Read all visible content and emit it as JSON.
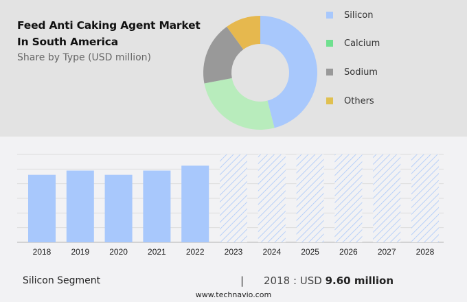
{
  "header": {
    "title_line1": "Feed Anti Caking Agent Market",
    "title_line2": "In South America",
    "subtitle": "Share by Type (USD million)"
  },
  "legend": [
    {
      "label": "Silicon",
      "color": "#a8c8fc"
    },
    {
      "label": "Calcium",
      "color": "#6fe08f"
    },
    {
      "label": "Sodium",
      "color": "#999999"
    },
    {
      "label": "Others",
      "color": "#e0c050"
    }
  ],
  "footer": {
    "segment": "Silicon Segment",
    "separator": "|",
    "value_prefix": "2018 : USD ",
    "value_bold": "9.60 million",
    "url": "www.technavio.com"
  },
  "chart_data": [
    {
      "type": "pie",
      "title": "Feed Anti Caking Agent Market In South America - Share by Type (USD million)",
      "donut": true,
      "categories": [
        "Silicon",
        "Calcium",
        "Sodium",
        "Others"
      ],
      "values": [
        46,
        26,
        18,
        10
      ],
      "colors": [
        "#a8c8fc",
        "#b8ecbc",
        "#999999",
        "#e6b84e"
      ],
      "legend_position": "right"
    },
    {
      "type": "bar",
      "title": "Silicon Segment",
      "categories": [
        "2018",
        "2019",
        "2020",
        "2021",
        "2022",
        "2023",
        "2024",
        "2025",
        "2026",
        "2027",
        "2028"
      ],
      "values": [
        9.6,
        10.2,
        9.6,
        10.2,
        10.9,
        null,
        null,
        null,
        null,
        null,
        null
      ],
      "forecast_years": [
        "2023",
        "2024",
        "2025",
        "2026",
        "2027",
        "2028"
      ],
      "xlabel": "",
      "ylabel": "",
      "ylim": [
        0,
        12.5
      ],
      "grid": true,
      "annotations": [
        "2018 : USD 9.60 million"
      ]
    }
  ]
}
